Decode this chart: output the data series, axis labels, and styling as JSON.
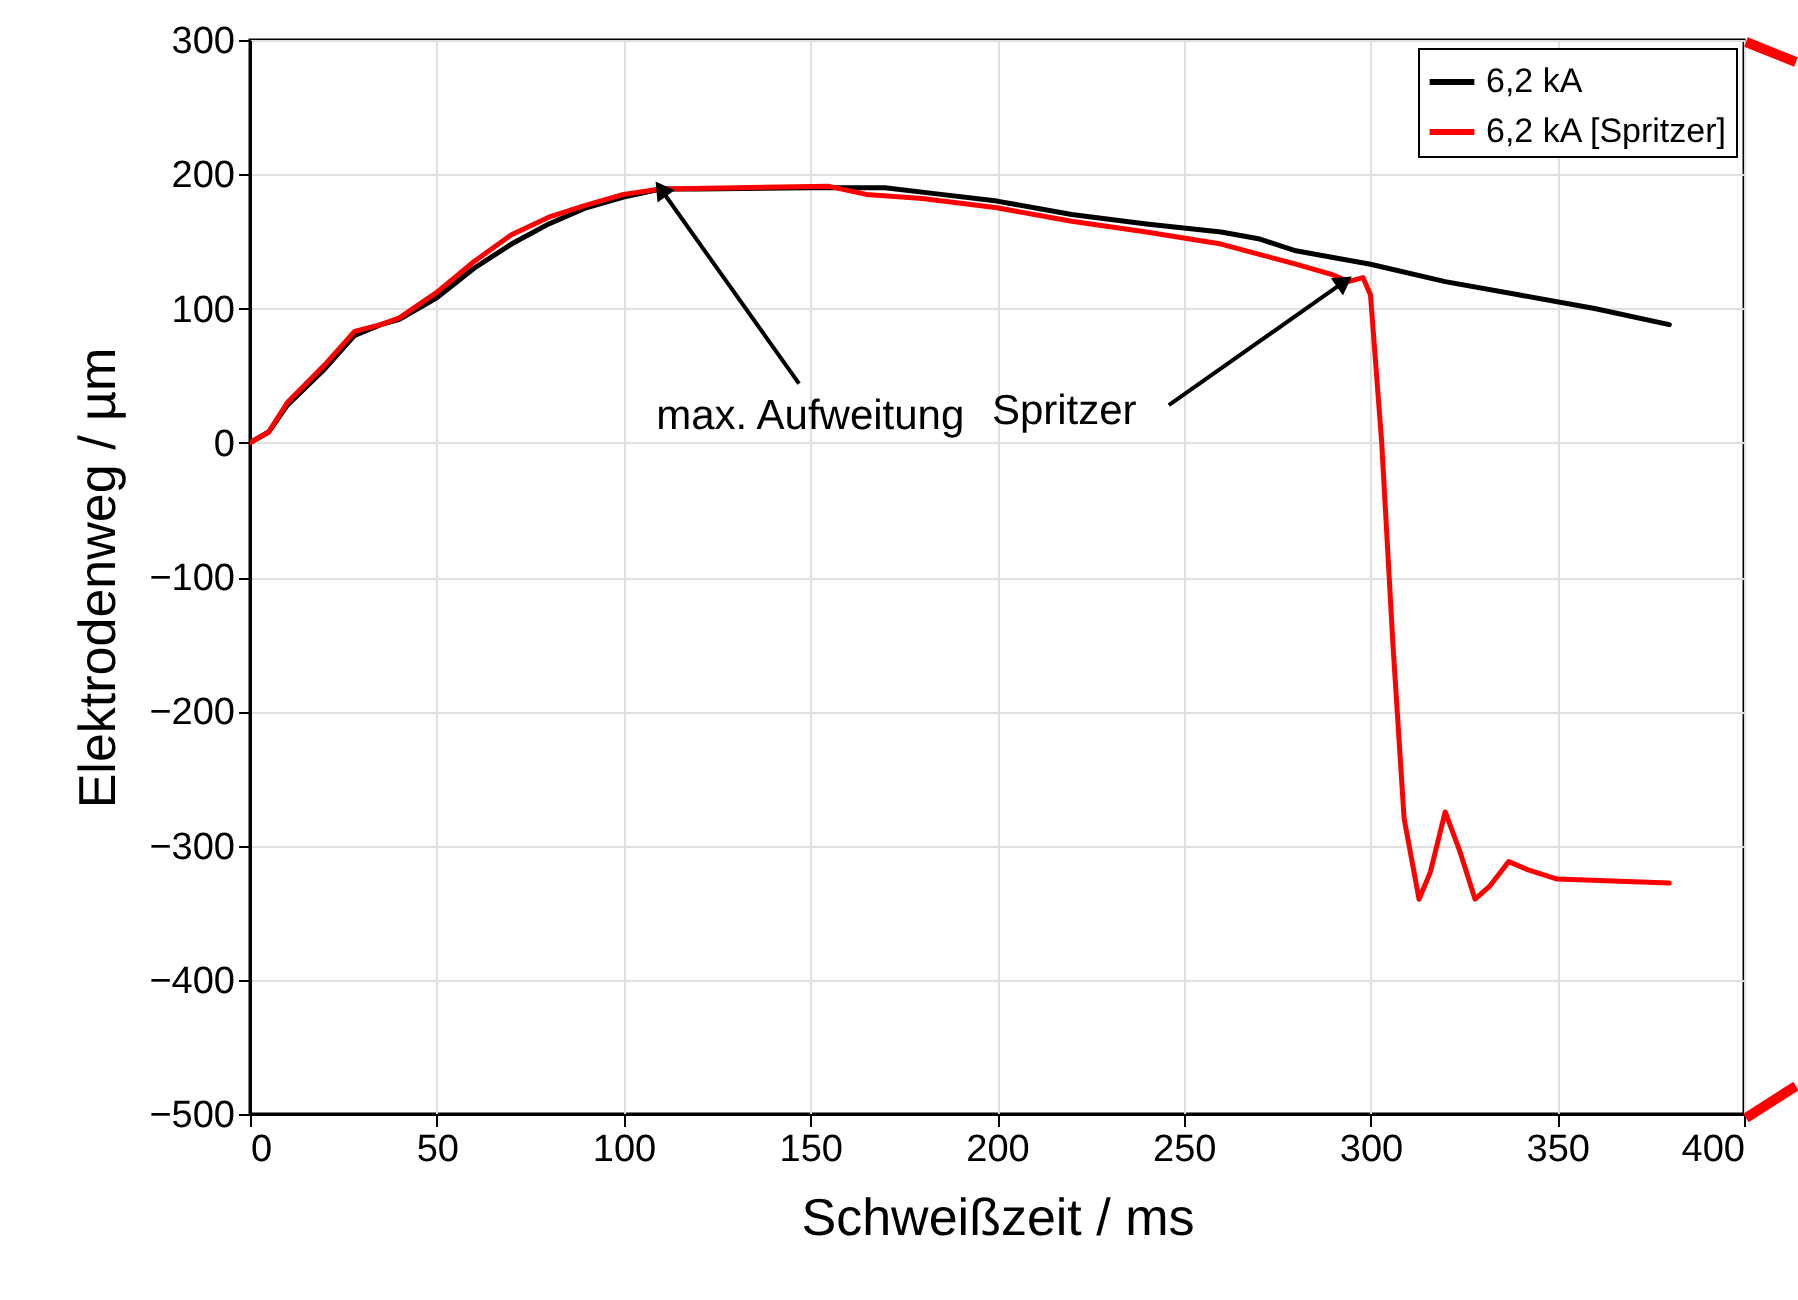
{
  "chart_data": {
    "type": "line",
    "xlabel": "Schweißzeit / ms",
    "ylabel": "Elektrodenweg / µm",
    "xlim": [
      0,
      400
    ],
    "xticks": [
      0,
      50,
      100,
      150,
      200,
      250,
      300,
      350,
      400
    ],
    "ylim": [
      -500,
      300
    ],
    "yticks": [
      -500,
      -400,
      -300,
      -200,
      -100,
      0,
      100,
      200,
      300
    ],
    "grid": true,
    "legend": "top right",
    "line_style": "solid",
    "series": [
      {
        "name": "6,2 kA",
        "color": "#000000",
        "x": [
          0,
          5,
          10,
          20,
          28,
          35,
          40,
          50,
          60,
          70,
          80,
          90,
          100,
          110,
          120,
          150,
          170,
          185,
          200,
          220,
          240,
          260,
          270,
          280,
          300,
          320,
          340,
          360,
          380
        ],
        "values": [
          0,
          8,
          28,
          55,
          80,
          88,
          92,
          108,
          130,
          148,
          163,
          175,
          183,
          189,
          189,
          190,
          190,
          185,
          180,
          170,
          163,
          157,
          152,
          143,
          133,
          120,
          110,
          100,
          88
        ]
      },
      {
        "name": "6,2 kA [Spritzer]",
        "color": "#ff0000",
        "x": [
          0,
          5,
          10,
          20,
          28,
          35,
          40,
          50,
          60,
          70,
          80,
          90,
          100,
          110,
          130,
          155,
          165,
          180,
          200,
          220,
          240,
          260,
          280,
          290,
          294,
          298,
          300,
          303,
          306,
          309,
          313,
          316,
          320,
          324,
          328,
          332,
          337,
          342,
          350,
          380
        ],
        "values": [
          0,
          8,
          30,
          58,
          83,
          88,
          93,
          112,
          135,
          155,
          168,
          177,
          185,
          189,
          190,
          191,
          185,
          182,
          175,
          165,
          157,
          148,
          133,
          125,
          120,
          123,
          110,
          0,
          -150,
          -280,
          -340,
          -320,
          -275,
          -305,
          -340,
          -330,
          -312,
          -318,
          -325,
          -328
        ]
      }
    ],
    "annotations": [
      {
        "text": "max. Aufweitung",
        "x": 110,
        "y": 189
      },
      {
        "text": "Spritzer",
        "x": 293,
        "y": 120
      }
    ]
  }
}
